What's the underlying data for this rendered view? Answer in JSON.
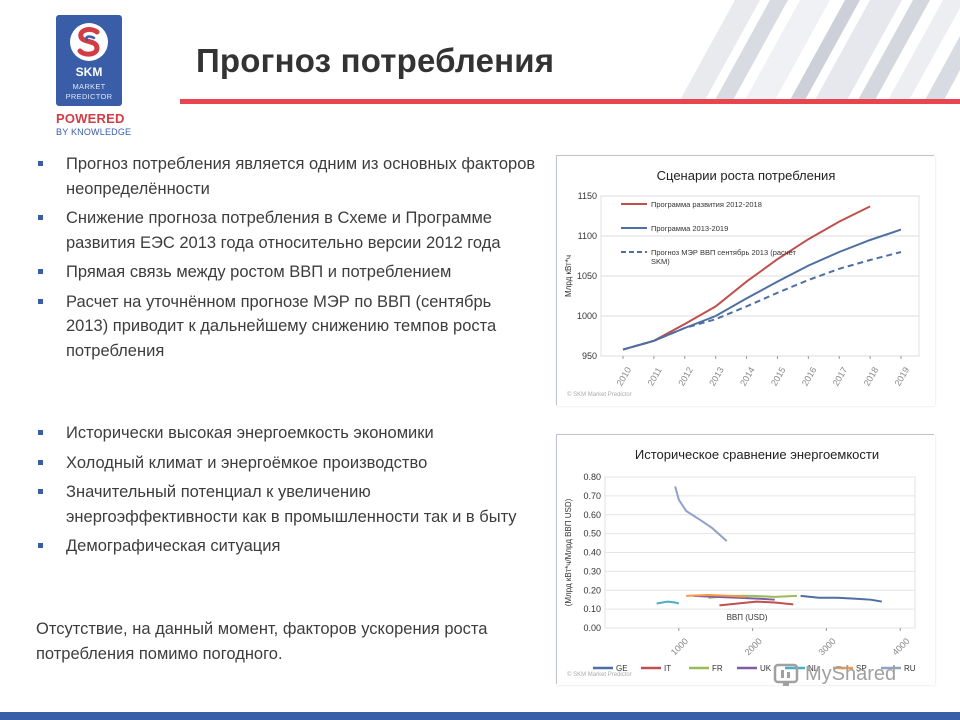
{
  "header": {
    "title": "Прогноз потребления",
    "colors": {
      "accent_red": "#e8454e",
      "brand_blue": "#3a5da8"
    }
  },
  "logo": {
    "mark_icon": "skm-s-logo-icon",
    "name": "SKM",
    "line1": "MARKET",
    "line2": "PREDICTOR",
    "powered": "POWERED",
    "by_knowledge": "BY KNOWLEDGE"
  },
  "bullets_top": [
    "Прогноз потребления является одним из основных факторов неопределённости",
    "Снижение прогноза потребления в Схеме и Программе развития ЕЭС 2013 года относительно версии 2012 года",
    "Прямая связь между ростом ВВП и потреблением",
    "Расчет  на уточнённом прогнозе МЭР по ВВП (сентябрь 2013) приводит к дальнейшему снижению темпов роста потребления"
  ],
  "bullets_bottom": [
    "Исторически высокая энергоемкость экономики",
    "Холодный климат и энергоёмкое производство",
    "Значительный потенциал к увеличению энергоэффективности как в промышленности так и в быту",
    "Демографическая ситуация"
  ],
  "conclusion": "Отсутствие, на данный момент, факторов ускорения роста потребления помимо погодного.",
  "watermark": {
    "text": "MyShared",
    "icon": "myshared-logo-icon"
  },
  "chart_data": [
    {
      "type": "line",
      "title": "Сценарии роста потребления",
      "ylabel": "Млрд кВт*ч",
      "xlabel": "",
      "x": [
        "2010",
        "2011",
        "2012",
        "2013",
        "2014",
        "2015",
        "2016",
        "2017",
        "2018",
        "2019"
      ],
      "ylim": [
        950,
        1150
      ],
      "yticks": [
        "950",
        "1000",
        "1050",
        "1100",
        "1150"
      ],
      "grid": true,
      "legend_position": "top-left",
      "copyright": "© SKM Market Predictor",
      "series": [
        {
          "name": "Программа развития 2012-2018",
          "color": "#c0504d",
          "style": "solid",
          "values": [
            958,
            969,
            990,
            1012,
            1043,
            1071,
            1096,
            1118,
            1137,
            null
          ]
        },
        {
          "name": "Программа 2013-2019",
          "color": "#4f6fa3",
          "style": "solid",
          "values": [
            958,
            969,
            985,
            1000,
            1022,
            1043,
            1063,
            1080,
            1095,
            1108
          ]
        },
        {
          "name": "Прогноз МЭР ВВП сентябрь 2013 (расчет SKM)",
          "color": "#4f6fa3",
          "style": "dashed",
          "values": [
            958,
            969,
            985,
            996,
            1012,
            1029,
            1045,
            1059,
            1070,
            1080
          ]
        }
      ]
    },
    {
      "type": "line",
      "title": "Историческое сравнение энергоемкости",
      "ylabel": "(Млрд кВт*ч/Млрд ВВП USD)",
      "xlabel": "ВВП (USD)",
      "xticks": [
        "1000",
        "2000",
        "3000",
        "4000"
      ],
      "xlim": [
        0,
        4200
      ],
      "ylim": [
        0,
        0.8
      ],
      "yticks": [
        "0.00",
        "0.10",
        "0.20",
        "0.30",
        "0.40",
        "0.50",
        "0.60",
        "0.70",
        "0.80"
      ],
      "grid": true,
      "legend_position": "bottom",
      "copyright": "© SKM Market Predictor",
      "series": [
        {
          "name": "GE",
          "color": "#4f6fa3",
          "points": [
            [
              2650,
              0.17
            ],
            [
              2900,
              0.16
            ],
            [
              3150,
              0.16
            ],
            [
              3400,
              0.155
            ],
            [
              3600,
              0.15
            ],
            [
              3750,
              0.14
            ]
          ]
        },
        {
          "name": "IT",
          "color": "#c0504d",
          "points": [
            [
              1550,
              0.12
            ],
            [
              1800,
              0.13
            ],
            [
              2050,
              0.14
            ],
            [
              2300,
              0.135
            ],
            [
              2550,
              0.125
            ]
          ]
        },
        {
          "name": "FR",
          "color": "#9bbb59",
          "points": [
            [
              1400,
              0.16
            ],
            [
              1700,
              0.17
            ],
            [
              2000,
              0.17
            ],
            [
              2300,
              0.165
            ],
            [
              2600,
              0.17
            ]
          ]
        },
        {
          "name": "UK",
          "color": "#7d5fa0",
          "points": [
            [
              1200,
              0.17
            ],
            [
              1500,
              0.165
            ],
            [
              1800,
              0.16
            ],
            [
              2100,
              0.155
            ],
            [
              2300,
              0.15
            ]
          ]
        },
        {
          "name": "NL",
          "color": "#4bacc6",
          "points": [
            [
              700,
              0.13
            ],
            [
              850,
              0.14
            ],
            [
              950,
              0.135
            ],
            [
              1000,
              0.13
            ]
          ]
        },
        {
          "name": "SP",
          "color": "#f79646",
          "points": [
            [
              1100,
              0.17
            ],
            [
              1400,
              0.175
            ],
            [
              1700,
              0.17
            ],
            [
              1900,
              0.165
            ]
          ]
        },
        {
          "name": "RU",
          "color": "#8ea3c7",
          "points": [
            [
              950,
              0.75
            ],
            [
              1000,
              0.68
            ],
            [
              1100,
              0.62
            ],
            [
              1300,
              0.57
            ],
            [
              1450,
              0.53
            ],
            [
              1650,
              0.46
            ]
          ]
        }
      ]
    }
  ]
}
